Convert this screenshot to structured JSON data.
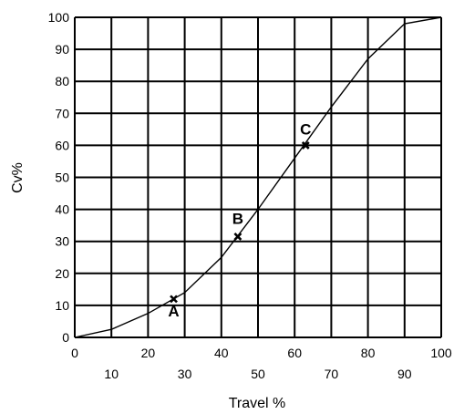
{
  "chart_data": {
    "type": "line",
    "xlabel": "Travel %",
    "ylabel": "Cv%",
    "xlim": [
      0,
      100
    ],
    "ylim": [
      0,
      100
    ],
    "x_ticks": [
      0,
      10,
      20,
      30,
      40,
      50,
      60,
      70,
      80,
      90,
      100
    ],
    "y_ticks": [
      0,
      10,
      20,
      30,
      40,
      50,
      60,
      70,
      80,
      90,
      100
    ],
    "grid": true,
    "series": [
      {
        "x": [
          0,
          10,
          20,
          30,
          40,
          50,
          60,
          70,
          80,
          90,
          100
        ],
        "y": [
          0,
          2.5,
          7.5,
          14,
          25,
          40,
          56,
          72,
          87,
          98,
          100
        ]
      }
    ],
    "points": [
      {
        "label": "A",
        "x": 27,
        "y": 12
      },
      {
        "label": "B",
        "x": 44.5,
        "y": 31.5
      },
      {
        "label": "C",
        "x": 63,
        "y": 60
      }
    ]
  }
}
